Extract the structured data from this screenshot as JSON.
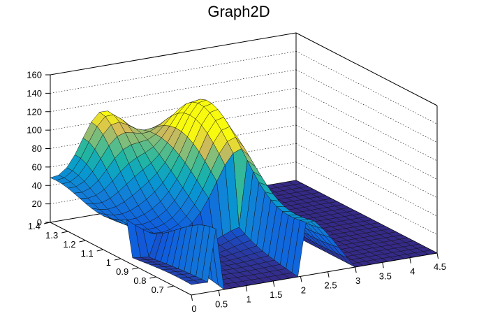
{
  "chart_data": {
    "type": "surface",
    "title": "Graph2D",
    "xlabel": "",
    "ylabel": "",
    "zlabel": "",
    "xlim": [
      0,
      4.5
    ],
    "ylim": [
      0.6,
      1.4
    ],
    "zlim": [
      0,
      160
    ],
    "x_ticks": [
      "0",
      "0.5",
      "1",
      "1.5",
      "2",
      "2.5",
      "3",
      "3.5",
      "4",
      "4.5"
    ],
    "y_ticks": [
      "0.7",
      "0.8",
      "0.9",
      "1",
      "1.1",
      "1.2",
      "1.3",
      "1.4"
    ],
    "z_ticks": [
      "0",
      "20",
      "40",
      "60",
      "80",
      "100",
      "120",
      "140",
      "160"
    ],
    "colormap": "viridis-like (blue to yellow)",
    "grid": true,
    "features": [
      {
        "description": "ridge along low-x edge",
        "x": 0.0,
        "z": 50
      },
      {
        "description": "peak near back-left",
        "x": 0.9,
        "y": 1.4,
        "z": 125
      },
      {
        "description": "central ridge maximum",
        "x": 2.0,
        "y": 1.1,
        "z": 110
      },
      {
        "description": "flat region",
        "x_range": [
          3.0,
          4.5
        ],
        "z": 0
      }
    ]
  },
  "colors": {
    "low": "#352a87",
    "mid": "#21b6a2",
    "high": "#f9fb0e",
    "frame": "#000000"
  }
}
